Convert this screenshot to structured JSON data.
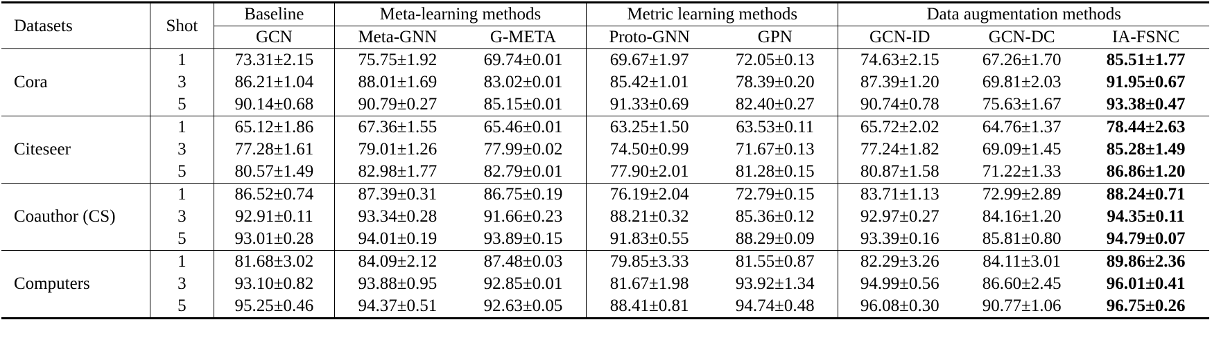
{
  "header": {
    "datasets_label": "Datasets",
    "shot_label": "Shot",
    "groups": [
      {
        "label": "Baseline",
        "span": 1
      },
      {
        "label": "Meta-learning methods",
        "span": 2
      },
      {
        "label": "Metric learning methods",
        "span": 2
      },
      {
        "label": "Data augmentation methods",
        "span": 3
      }
    ],
    "methods": [
      "GCN",
      "Meta-GNN",
      "G-META",
      "Proto-GNN",
      "GPN",
      "GCN-ID",
      "GCN-DC",
      "IA-FSNC"
    ]
  },
  "datasets": [
    {
      "name": "Cora",
      "rows": [
        {
          "shot": "1",
          "values": [
            "73.31±2.15",
            "75.75±1.92",
            "69.74±0.01",
            "69.67±1.97",
            "72.05±0.13",
            "74.63±2.15",
            "67.26±1.70",
            "85.51±1.77"
          ]
        },
        {
          "shot": "3",
          "values": [
            "86.21±1.04",
            "88.01±1.69",
            "83.02±0.01",
            "85.42±1.01",
            "78.39±0.20",
            "87.39±1.20",
            "69.81±2.03",
            "91.95±0.67"
          ]
        },
        {
          "shot": "5",
          "values": [
            "90.14±0.68",
            "90.79±0.27",
            "85.15±0.01",
            "91.33±0.69",
            "82.40±0.27",
            "90.74±0.78",
            "75.63±1.67",
            "93.38±0.47"
          ]
        }
      ]
    },
    {
      "name": "Citeseer",
      "rows": [
        {
          "shot": "1",
          "values": [
            "65.12±1.86",
            "67.36±1.55",
            "65.46±0.01",
            "63.25±1.50",
            "63.53±0.11",
            "65.72±2.02",
            "64.76±1.37",
            "78.44±2.63"
          ]
        },
        {
          "shot": "3",
          "values": [
            "77.28±1.61",
            "79.01±1.26",
            "77.99±0.02",
            "74.50±0.99",
            "71.67±0.13",
            "77.24±1.82",
            "69.09±1.45",
            "85.28±1.49"
          ]
        },
        {
          "shot": "5",
          "values": [
            "80.57±1.49",
            "82.98±1.77",
            "82.79±0.01",
            "77.90±2.01",
            "81.28±0.15",
            "80.87±1.58",
            "71.22±1.33",
            "86.86±1.20"
          ]
        }
      ]
    },
    {
      "name": "Coauthor (CS)",
      "rows": [
        {
          "shot": "1",
          "values": [
            "86.52±0.74",
            "87.39±0.31",
            "86.75±0.19",
            "76.19±2.04",
            "72.79±0.15",
            "83.71±1.13",
            "72.99±2.89",
            "88.24±0.71"
          ]
        },
        {
          "shot": "3",
          "values": [
            "92.91±0.11",
            "93.34±0.28",
            "91.66±0.23",
            "88.21±0.32",
            "85.36±0.12",
            "92.97±0.27",
            "84.16±1.20",
            "94.35±0.11"
          ]
        },
        {
          "shot": "5",
          "values": [
            "93.01±0.28",
            "94.01±0.19",
            "93.89±0.15",
            "91.83±0.55",
            "88.29±0.09",
            "93.39±0.16",
            "85.81±0.80",
            "94.79±0.07"
          ]
        }
      ]
    },
    {
      "name": "Computers",
      "rows": [
        {
          "shot": "1",
          "values": [
            "81.68±3.02",
            "84.09±2.12",
            "87.48±0.03",
            "79.85±3.33",
            "81.55±0.87",
            "82.29±3.26",
            "84.11±3.01",
            "89.86±2.36"
          ]
        },
        {
          "shot": "3",
          "values": [
            "93.10±0.82",
            "93.88±0.95",
            "92.85±0.01",
            "81.67±1.98",
            "93.92±1.34",
            "94.99±0.56",
            "86.60±2.45",
            "96.01±0.41"
          ]
        },
        {
          "shot": "5",
          "values": [
            "95.25±0.46",
            "94.37±0.51",
            "92.63±0.05",
            "88.41±0.81",
            "94.74±0.48",
            "96.08±0.30",
            "90.77±1.06",
            "96.75±0.26"
          ]
        }
      ]
    }
  ],
  "bold_column_index": 7
}
